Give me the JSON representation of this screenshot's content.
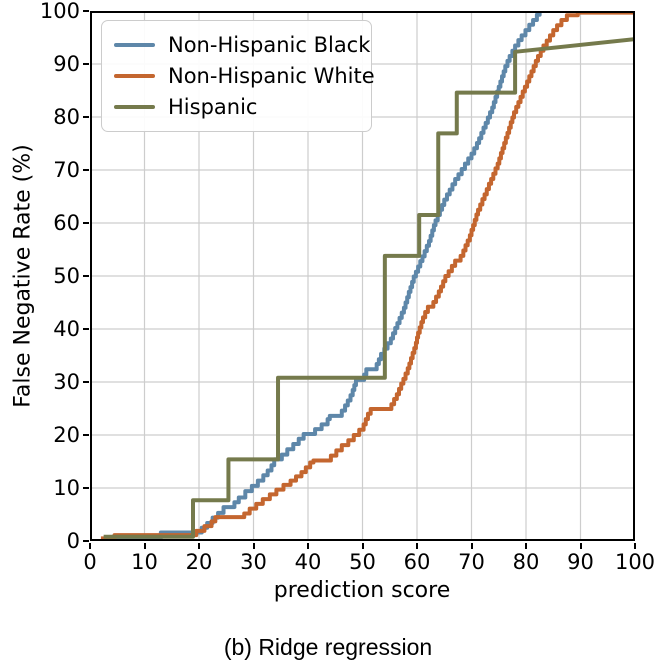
{
  "figure": {
    "caption": "(b) Ridge regression"
  },
  "chart_data": {
    "type": "line",
    "subtype": "step-post-cdf",
    "title": "",
    "xlabel": "prediction score",
    "ylabel": "False Negative Rate (%)",
    "xlim": [
      0,
      100
    ],
    "ylim": [
      0,
      100
    ],
    "x_ticks": [
      0,
      10,
      20,
      30,
      40,
      50,
      60,
      70,
      80,
      90,
      100
    ],
    "y_ticks": [
      0,
      10,
      20,
      30,
      40,
      50,
      60,
      70,
      80,
      90,
      100
    ],
    "grid": true,
    "grid_color": "#cdcdcd",
    "legend_position": "upper left",
    "line_width": 4,
    "series": [
      {
        "name": "Non-Hispanic Black",
        "color": "#5e87a9",
        "tail_linear": false,
        "points": [
          [
            3,
            0.6
          ],
          [
            13,
            1.6
          ],
          [
            20.5,
            2.5
          ],
          [
            21.5,
            3.4
          ],
          [
            22.5,
            4.4
          ],
          [
            23.5,
            5.3
          ],
          [
            24.5,
            6.4
          ],
          [
            26.5,
            7.3
          ],
          [
            27.3,
            8.2
          ],
          [
            28.5,
            9.4
          ],
          [
            29.7,
            10.4
          ],
          [
            30.8,
            11.4
          ],
          [
            31.8,
            12.4
          ],
          [
            32.6,
            13.3
          ],
          [
            33.3,
            14.3
          ],
          [
            33.8,
            15.4
          ],
          [
            35.2,
            16.3
          ],
          [
            36.2,
            17.3
          ],
          [
            37.3,
            18.3
          ],
          [
            38.3,
            19.3
          ],
          [
            39.2,
            20.2
          ],
          [
            41.3,
            21.1
          ],
          [
            42.5,
            22.0
          ],
          [
            43.6,
            23.0
          ],
          [
            44.0,
            23.6
          ],
          [
            46.2,
            24.6
          ],
          [
            46.8,
            25.6
          ],
          [
            47.3,
            26.5
          ],
          [
            47.8,
            27.5
          ],
          [
            48.2,
            28.5
          ],
          [
            48.5,
            29.4
          ],
          [
            48.8,
            30.4
          ],
          [
            50.3,
            31.4
          ],
          [
            50.7,
            32.4
          ],
          [
            52.6,
            33.4
          ],
          [
            53.0,
            34.3
          ],
          [
            53.4,
            35.3
          ],
          [
            54.0,
            36.3
          ],
          [
            54.6,
            37.3
          ],
          [
            55.2,
            38.2
          ],
          [
            55.6,
            39.2
          ],
          [
            56.0,
            40.2
          ],
          [
            56.4,
            41.1
          ],
          [
            56.8,
            42.1
          ],
          [
            57.2,
            43.1
          ],
          [
            57.6,
            44.0
          ],
          [
            57.9,
            45.0
          ],
          [
            58.2,
            46.0
          ],
          [
            58.5,
            47.0
          ],
          [
            58.8,
            47.9
          ],
          [
            59.1,
            48.9
          ],
          [
            59.4,
            49.9
          ],
          [
            59.8,
            50.8
          ],
          [
            60.2,
            51.8
          ],
          [
            60.6,
            52.8
          ],
          [
            61.0,
            53.7
          ],
          [
            61.4,
            54.7
          ],
          [
            61.8,
            55.7
          ],
          [
            62.2,
            56.6
          ],
          [
            62.5,
            57.6
          ],
          [
            62.8,
            58.6
          ],
          [
            63.1,
            59.6
          ],
          [
            63.4,
            60.5
          ],
          [
            63.8,
            61.5
          ],
          [
            64.2,
            62.5
          ],
          [
            64.6,
            63.4
          ],
          [
            65.0,
            64.4
          ],
          [
            65.5,
            65.4
          ],
          [
            66.0,
            66.3
          ],
          [
            66.5,
            67.3
          ],
          [
            67.0,
            68.3
          ],
          [
            67.6,
            69.2
          ],
          [
            68.2,
            70.2
          ],
          [
            68.8,
            71.2
          ],
          [
            69.4,
            72.2
          ],
          [
            70.0,
            73.1
          ],
          [
            70.5,
            74.1
          ],
          [
            71.0,
            75.1
          ],
          [
            71.4,
            76.0
          ],
          [
            71.8,
            77.0
          ],
          [
            72.2,
            78.0
          ],
          [
            72.6,
            78.9
          ],
          [
            73.0,
            79.9
          ],
          [
            73.4,
            80.9
          ],
          [
            73.8,
            81.8
          ],
          [
            74.1,
            82.8
          ],
          [
            74.4,
            83.8
          ],
          [
            74.7,
            84.8
          ],
          [
            75.0,
            85.7
          ],
          [
            75.3,
            86.7
          ],
          [
            75.6,
            87.7
          ],
          [
            75.9,
            88.6
          ],
          [
            76.2,
            89.6
          ],
          [
            76.6,
            90.6
          ],
          [
            77.0,
            91.5
          ],
          [
            77.5,
            92.5
          ],
          [
            78.0,
            93.5
          ],
          [
            78.6,
            94.5
          ],
          [
            79.2,
            95.4
          ],
          [
            79.9,
            96.4
          ],
          [
            80.6,
            97.4
          ],
          [
            81.3,
            98.3
          ],
          [
            82.0,
            99.3
          ],
          [
            82.5,
            100
          ],
          [
            100,
            100
          ]
        ]
      },
      {
        "name": "Non-Hispanic White",
        "color": "#c4662f",
        "tail_linear": false,
        "points": [
          [
            2,
            0.5
          ],
          [
            4.5,
            1.1
          ],
          [
            19.5,
            1.9
          ],
          [
            21,
            2.8
          ],
          [
            22.3,
            3.7
          ],
          [
            23.0,
            4.5
          ],
          [
            28.3,
            5.2
          ],
          [
            29.3,
            6.1
          ],
          [
            30.5,
            7.0
          ],
          [
            31.7,
            7.9
          ],
          [
            33.0,
            8.8
          ],
          [
            34.2,
            9.7
          ],
          [
            35.5,
            10.6
          ],
          [
            36.8,
            11.4
          ],
          [
            37.8,
            12.2
          ],
          [
            38.8,
            13.0
          ],
          [
            39.6,
            13.9
          ],
          [
            40.4,
            14.8
          ],
          [
            41.0,
            15.2
          ],
          [
            44.2,
            16.1
          ],
          [
            45.2,
            17.1
          ],
          [
            46.2,
            18.1
          ],
          [
            47.4,
            19.0
          ],
          [
            48.4,
            20.0
          ],
          [
            49.4,
            21.0
          ],
          [
            50.2,
            22.0
          ],
          [
            50.6,
            23.0
          ],
          [
            51.0,
            24.0
          ],
          [
            51.5,
            24.9
          ],
          [
            55.3,
            25.8
          ],
          [
            55.8,
            26.8
          ],
          [
            56.3,
            27.7
          ],
          [
            56.7,
            28.7
          ],
          [
            57.1,
            29.7
          ],
          [
            57.5,
            30.6
          ],
          [
            57.9,
            31.6
          ],
          [
            58.3,
            32.6
          ],
          [
            58.6,
            33.5
          ],
          [
            58.9,
            34.5
          ],
          [
            59.2,
            35.5
          ],
          [
            59.5,
            36.4
          ],
          [
            59.8,
            37.4
          ],
          [
            60.0,
            38.4
          ],
          [
            60.2,
            39.3
          ],
          [
            60.5,
            40.3
          ],
          [
            60.8,
            41.3
          ],
          [
            61.1,
            42.2
          ],
          [
            61.5,
            43.2
          ],
          [
            62.0,
            44.2
          ],
          [
            63.0,
            45.1
          ],
          [
            63.5,
            46.1
          ],
          [
            64.0,
            47.1
          ],
          [
            64.4,
            48.0
          ],
          [
            64.8,
            49.0
          ],
          [
            65.2,
            50.0
          ],
          [
            65.8,
            50.9
          ],
          [
            66.4,
            51.9
          ],
          [
            67.0,
            52.9
          ],
          [
            68.0,
            53.8
          ],
          [
            68.5,
            54.8
          ],
          [
            68.9,
            55.8
          ],
          [
            69.3,
            56.7
          ],
          [
            69.7,
            57.7
          ],
          [
            70.0,
            58.7
          ],
          [
            70.3,
            59.6
          ],
          [
            70.6,
            60.6
          ],
          [
            70.9,
            61.6
          ],
          [
            71.2,
            62.5
          ],
          [
            71.6,
            63.5
          ],
          [
            72.0,
            64.5
          ],
          [
            72.4,
            65.4
          ],
          [
            72.8,
            66.4
          ],
          [
            73.2,
            67.4
          ],
          [
            73.6,
            68.3
          ],
          [
            74.0,
            69.3
          ],
          [
            74.4,
            70.3
          ],
          [
            74.8,
            71.2
          ],
          [
            75.1,
            72.2
          ],
          [
            75.4,
            73.2
          ],
          [
            75.7,
            74.1
          ],
          [
            76.0,
            75.1
          ],
          [
            76.3,
            76.1
          ],
          [
            76.6,
            77.0
          ],
          [
            76.9,
            78.0
          ],
          [
            77.2,
            79.0
          ],
          [
            77.5,
            79.9
          ],
          [
            77.8,
            80.9
          ],
          [
            78.2,
            81.9
          ],
          [
            78.6,
            82.8
          ],
          [
            79.0,
            83.8
          ],
          [
            79.4,
            84.8
          ],
          [
            79.8,
            85.7
          ],
          [
            80.2,
            86.7
          ],
          [
            80.6,
            87.7
          ],
          [
            81.0,
            88.6
          ],
          [
            81.4,
            89.6
          ],
          [
            81.8,
            90.6
          ],
          [
            82.2,
            91.5
          ],
          [
            82.7,
            92.5
          ],
          [
            83.2,
            93.5
          ],
          [
            83.8,
            94.4
          ],
          [
            84.4,
            95.4
          ],
          [
            85.0,
            96.4
          ],
          [
            85.7,
            97.3
          ],
          [
            86.5,
            98.3
          ],
          [
            87.5,
            99.2
          ],
          [
            89.5,
            99.7
          ],
          [
            100,
            99.7
          ]
        ]
      },
      {
        "name": "Hispanic",
        "color": "#757a4c",
        "tail_linear": true,
        "points": [
          [
            2.5,
            0.8
          ],
          [
            18.9,
            7.7
          ],
          [
            25.4,
            15.4
          ],
          [
            34.5,
            30.8
          ],
          [
            54.1,
            53.8
          ],
          [
            60.4,
            61.5
          ],
          [
            63.9,
            76.9
          ],
          [
            67.3,
            84.6
          ],
          [
            78.0,
            92.3
          ],
          [
            100,
            94.7
          ]
        ]
      }
    ]
  }
}
